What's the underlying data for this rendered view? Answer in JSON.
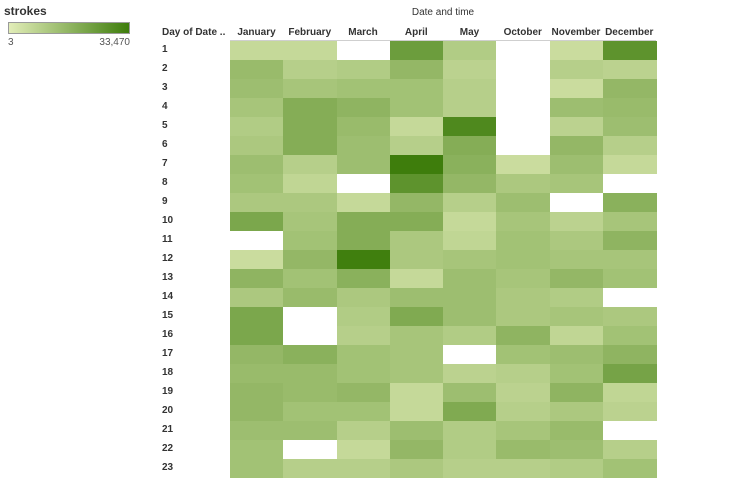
{
  "legend": {
    "title": "strokes",
    "min_label": "3",
    "max_label": "33,470",
    "min": 3,
    "max": 33470,
    "color_low": "#e2edb8",
    "color_high": "#3e7d0c"
  },
  "chart_data": {
    "type": "heatmap",
    "title": "",
    "xlabel": "Date and time",
    "ylabel": "Day of Date ..",
    "x": [
      "January",
      "February",
      "March",
      "April",
      "May",
      "October",
      "November",
      "December"
    ],
    "y": [
      "1",
      "2",
      "3",
      "4",
      "5",
      "6",
      "7",
      "8",
      "9",
      "10",
      "11",
      "12",
      "13",
      "14",
      "15",
      "16",
      "17",
      "18",
      "19",
      "20",
      "21",
      "22",
      "23"
    ],
    "values": [
      [
        6000,
        6000,
        null,
        24000,
        10000,
        null,
        5000,
        27000
      ],
      [
        15000,
        9000,
        10000,
        16000,
        8000,
        null,
        9000,
        8000
      ],
      [
        14000,
        12000,
        13000,
        13000,
        9000,
        null,
        5000,
        16000
      ],
      [
        12000,
        19000,
        17000,
        13000,
        9000,
        null,
        14000,
        15000
      ],
      [
        10000,
        19000,
        15000,
        6000,
        30000,
        null,
        8000,
        14000
      ],
      [
        11000,
        19000,
        14000,
        9000,
        19000,
        null,
        16000,
        9000
      ],
      [
        14000,
        9000,
        14000,
        33470,
        18000,
        5000,
        14000,
        6000
      ],
      [
        13000,
        7000,
        null,
        27000,
        16000,
        11000,
        12000,
        null
      ],
      [
        11000,
        11000,
        6000,
        16000,
        9000,
        14000,
        null,
        18000
      ],
      [
        21000,
        12000,
        19000,
        19000,
        6000,
        12000,
        8000,
        12000
      ],
      [
        null,
        13000,
        19000,
        11000,
        7000,
        13000,
        11000,
        17000
      ],
      [
        5000,
        16000,
        33000,
        11000,
        12000,
        13000,
        12000,
        12000
      ],
      [
        17000,
        13000,
        18000,
        6000,
        14000,
        12000,
        16000,
        13000
      ],
      [
        11000,
        15000,
        11000,
        14000,
        14000,
        11000,
        10000,
        null
      ],
      [
        21000,
        null,
        10000,
        20000,
        14000,
        11000,
        12000,
        11000
      ],
      [
        21000,
        null,
        9000,
        12000,
        10000,
        17000,
        7000,
        13000
      ],
      [
        16000,
        18000,
        13000,
        12000,
        null,
        13000,
        14000,
        17000
      ],
      [
        15000,
        15000,
        13000,
        12000,
        8000,
        9000,
        13000,
        22000
      ],
      [
        16000,
        15000,
        16000,
        6000,
        14000,
        8000,
        17000,
        7000
      ],
      [
        16000,
        13000,
        13000,
        6000,
        20000,
        9000,
        11000,
        8000
      ],
      [
        14000,
        14000,
        9000,
        14000,
        10000,
        12000,
        15000,
        null
      ],
      [
        13000,
        null,
        6000,
        16000,
        10000,
        15000,
        14000,
        9000
      ],
      [
        13000,
        9000,
        9000,
        11000,
        9000,
        9000,
        10000,
        13000
      ]
    ]
  }
}
